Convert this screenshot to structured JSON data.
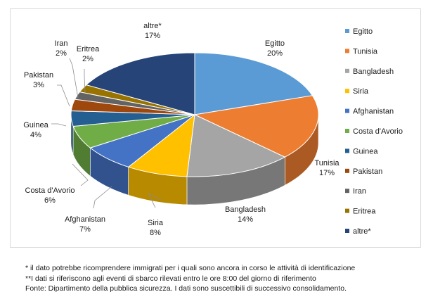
{
  "chart_data": {
    "type": "pie",
    "style": "3d",
    "categories": [
      "Egitto",
      "Tunisia",
      "Bangladesh",
      "Siria",
      "Afghanistan",
      "Costa d'Avorio",
      "Guinea",
      "Pakistan",
      "Iran",
      "Eritrea",
      "altre*"
    ],
    "values": [
      20,
      17,
      14,
      8,
      7,
      6,
      4,
      3,
      2,
      2,
      17
    ],
    "value_labels": [
      "20%",
      "17%",
      "14%",
      "8%",
      "7%",
      "6%",
      "4%",
      "3%",
      "2%",
      "2%",
      "17%"
    ],
    "colors": [
      "#5b9bd5",
      "#ed7d31",
      "#a5a5a5",
      "#ffc000",
      "#4472c4",
      "#70ad47",
      "#255e91",
      "#9e480e",
      "#636363",
      "#997300",
      "#264478"
    ],
    "legend_position": "right"
  },
  "notes": [
    "* il dato potrebbe ricomprendere immigrati per i quali sono ancora in corso le attività di identificazione",
    "**I dati si riferiscono agli eventi di sbarco rilevati entro le ore 8:00 del giorno di riferimento",
    "Fonte: Dipartimento della pubblica sicurezza. I dati sono suscettibili di successivo consolidamento."
  ]
}
